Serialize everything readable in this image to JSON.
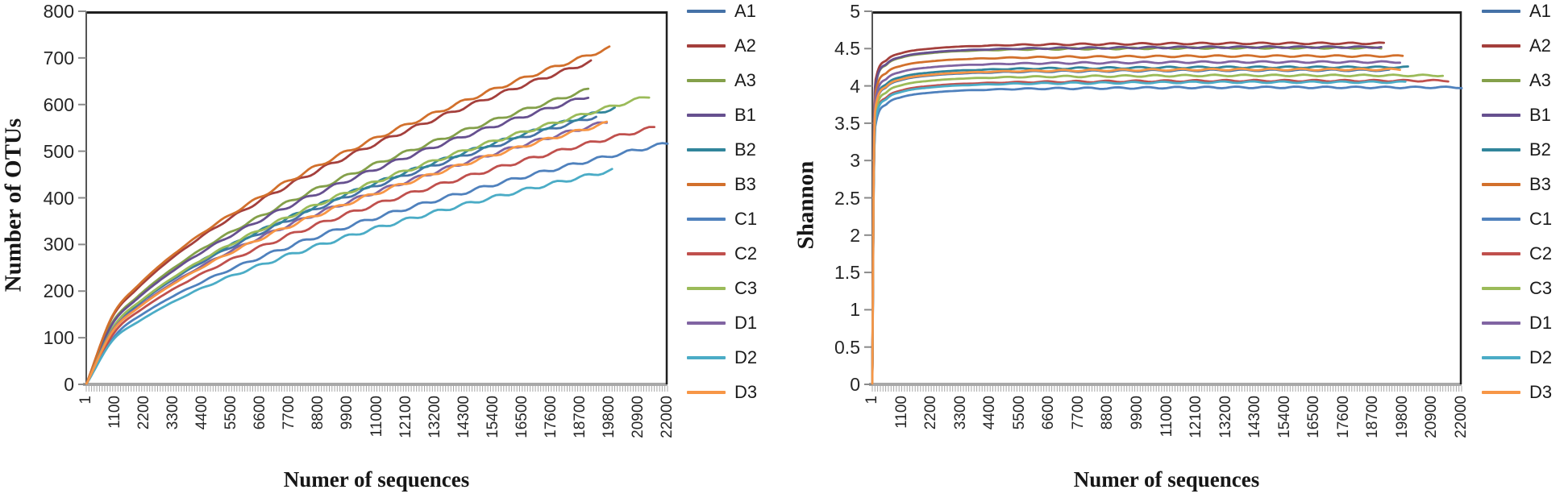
{
  "figure_title": "",
  "chart_data": [
    {
      "id": "otus",
      "type": "line",
      "title": "",
      "xlabel": "Numer of sequences",
      "ylabel": "Number of OTUs",
      "xlim": [
        1,
        22000
      ],
      "ylim": [
        0,
        800
      ],
      "grid": false,
      "legend_position": "right",
      "xticks": [
        1,
        1100,
        2200,
        3300,
        4400,
        5500,
        6600,
        7700,
        8800,
        9900,
        11000,
        12100,
        13200,
        14300,
        15400,
        16500,
        17600,
        18700,
        19800,
        20900,
        22000
      ],
      "yticks": [
        0,
        100,
        200,
        300,
        400,
        500,
        600,
        700,
        800
      ],
      "series": [
        {
          "name": "A1",
          "color": "#4572a7",
          "x": [
            1,
            965,
            1930,
            3860,
            6755,
            9650,
            13510,
            16405,
            19300
          ],
          "y": [
            0,
            117,
            170,
            245,
            329,
            398,
            476,
            528,
            575
          ]
        },
        {
          "name": "A2",
          "color": "#a43f3c",
          "x": [
            1,
            955,
            1910,
            3820,
            6685,
            9550,
            13370,
            16235,
            19100
          ],
          "y": [
            0,
            141,
            204,
            295,
            397,
            480,
            573,
            635,
            692
          ]
        },
        {
          "name": "A3",
          "color": "#84a04a",
          "x": [
            1,
            950,
            1900,
            3800,
            6650,
            9500,
            13300,
            16150,
            19000
          ],
          "y": [
            0,
            129,
            186,
            269,
            362,
            438,
            523,
            580,
            632
          ]
        },
        {
          "name": "B1",
          "color": "#66508f",
          "x": [
            1,
            950,
            1900,
            3800,
            6650,
            9500,
            13300,
            16150,
            19000
          ],
          "y": [
            0,
            126,
            182,
            263,
            354,
            428,
            512,
            567,
            618
          ]
        },
        {
          "name": "B2",
          "color": "#31859b",
          "x": [
            1,
            1000,
            2000,
            4000,
            7000,
            10000,
            14000,
            17000,
            20000
          ],
          "y": [
            0,
            121,
            175,
            253,
            340,
            411,
            491,
            544,
            593
          ]
        },
        {
          "name": "B3",
          "color": "#d2702c",
          "x": [
            1,
            990,
            1980,
            3960,
            6930,
            9900,
            13860,
            16830,
            19800
          ],
          "y": [
            0,
            147,
            213,
            307,
            413,
            500,
            597,
            662,
            721
          ]
        },
        {
          "name": "C1",
          "color": "#4f81bd",
          "x": [
            1,
            1100,
            2200,
            4400,
            7700,
            11000,
            15400,
            18700,
            22000
          ],
          "y": [
            0,
            105,
            153,
            220,
            296,
            358,
            428,
            475,
            517
          ]
        },
        {
          "name": "C2",
          "color": "#c0504d",
          "x": [
            1,
            1075,
            2150,
            4300,
            7525,
            10750,
            15050,
            18275,
            21500
          ],
          "y": [
            0,
            112,
            163,
            235,
            316,
            382,
            456,
            506,
            551
          ]
        },
        {
          "name": "C3",
          "color": "#9bbb59",
          "x": [
            1,
            1065,
            2130,
            4260,
            7455,
            10650,
            14910,
            18105,
            21300
          ],
          "y": [
            0,
            126,
            182,
            263,
            354,
            428,
            512,
            567,
            618
          ]
        },
        {
          "name": "D1",
          "color": "#8064a2",
          "x": [
            1,
            985,
            1970,
            3940,
            6895,
            9850,
            13790,
            16745,
            19700
          ],
          "y": [
            0,
            115,
            166,
            240,
            323,
            390,
            466,
            517,
            563
          ]
        },
        {
          "name": "D2",
          "color": "#4bacc6",
          "x": [
            1,
            995,
            1990,
            3980,
            6965,
            9950,
            13930,
            16915,
            19900
          ],
          "y": [
            0,
            94,
            135,
            196,
            263,
            318,
            380,
            421,
            459
          ]
        },
        {
          "name": "D3",
          "color": "#f79646",
          "x": [
            1,
            985,
            1970,
            3940,
            6895,
            9850,
            13790,
            16745,
            19700
          ],
          "y": [
            0,
            113,
            164,
            237,
            320,
            387,
            463,
            514,
            560
          ]
        }
      ]
    },
    {
      "id": "shannon",
      "type": "line",
      "title": "",
      "xlabel": "Numer of sequences",
      "ylabel": "Shannon",
      "xlim": [
        1,
        22000
      ],
      "ylim": [
        0,
        5
      ],
      "grid": false,
      "legend_position": "right",
      "xticks": [
        1,
        1100,
        2200,
        3300,
        4400,
        5500,
        6600,
        7700,
        8800,
        9900,
        11000,
        12100,
        13200,
        14300,
        15400,
        16500,
        17600,
        18700,
        19800,
        20900,
        22000
      ],
      "yticks": [
        0,
        0.5,
        1,
        1.5,
        2,
        2.5,
        3,
        3.5,
        4,
        4.5,
        5
      ],
      "series": [
        {
          "name": "A1",
          "color": "#4572a7",
          "x": [
            1,
            60,
            150,
            550,
            1100,
            2200,
            4400,
            8800,
            14300,
            19300
          ],
          "y": [
            0,
            3.06,
            3.76,
            3.99,
            4.08,
            4.14,
            4.18,
            4.2,
            4.21,
            4.21
          ]
        },
        {
          "name": "A2",
          "color": "#a43f3c",
          "x": [
            1,
            60,
            150,
            550,
            1100,
            2200,
            4400,
            8800,
            14300,
            19100
          ],
          "y": [
            0,
            3.42,
            4.12,
            4.35,
            4.44,
            4.5,
            4.54,
            4.56,
            4.57,
            4.57
          ]
        },
        {
          "name": "A3",
          "color": "#84a04a",
          "x": [
            1,
            60,
            150,
            550,
            1100,
            2200,
            4400,
            8800,
            14300,
            19000
          ],
          "y": [
            0,
            3.36,
            4.06,
            4.29,
            4.38,
            4.44,
            4.48,
            4.5,
            4.51,
            4.51
          ]
        },
        {
          "name": "B1",
          "color": "#66508f",
          "x": [
            1,
            60,
            150,
            550,
            1100,
            2200,
            4400,
            8800,
            14300,
            19000
          ],
          "y": [
            0,
            3.37,
            4.07,
            4.3,
            4.39,
            4.45,
            4.49,
            4.51,
            4.52,
            4.52
          ]
        },
        {
          "name": "B2",
          "color": "#31859b",
          "x": [
            1,
            60,
            150,
            550,
            1100,
            2200,
            4400,
            8800,
            14300,
            20000
          ],
          "y": [
            0,
            3.1,
            3.8,
            4.03,
            4.12,
            4.18,
            4.22,
            4.24,
            4.25,
            4.25
          ]
        },
        {
          "name": "B3",
          "color": "#d2702c",
          "x": [
            1,
            60,
            150,
            550,
            1100,
            2200,
            4400,
            8800,
            14300,
            19800
          ],
          "y": [
            0,
            3.25,
            3.95,
            4.18,
            4.27,
            4.33,
            4.37,
            4.39,
            4.4,
            4.4
          ]
        },
        {
          "name": "C1",
          "color": "#4f81bd",
          "x": [
            1,
            60,
            150,
            550,
            1100,
            2200,
            4400,
            8800,
            14300,
            22000
          ],
          "y": [
            0,
            2.83,
            3.53,
            3.76,
            3.85,
            3.91,
            3.95,
            3.97,
            3.98,
            3.98
          ]
        },
        {
          "name": "C2",
          "color": "#c0504d",
          "x": [
            1,
            60,
            150,
            550,
            1100,
            2200,
            4400,
            8800,
            14300,
            21500
          ],
          "y": [
            0,
            2.92,
            3.62,
            3.85,
            3.94,
            4.0,
            4.04,
            4.06,
            4.07,
            4.07
          ]
        },
        {
          "name": "C3",
          "color": "#9bbb59",
          "x": [
            1,
            60,
            150,
            550,
            1100,
            2200,
            4400,
            8800,
            14300,
            21300
          ],
          "y": [
            0,
            2.99,
            3.69,
            3.92,
            4.01,
            4.07,
            4.11,
            4.13,
            4.14,
            4.14
          ]
        },
        {
          "name": "D1",
          "color": "#8064a2",
          "x": [
            1,
            60,
            150,
            550,
            1100,
            2200,
            4400,
            8800,
            14300,
            19700
          ],
          "y": [
            0,
            3.17,
            3.87,
            4.1,
            4.19,
            4.25,
            4.29,
            4.31,
            4.32,
            4.32
          ]
        },
        {
          "name": "D2",
          "color": "#4bacc6",
          "x": [
            1,
            60,
            150,
            550,
            1100,
            2200,
            4400,
            8800,
            14300,
            19900
          ],
          "y": [
            0,
            2.9,
            3.6,
            3.83,
            3.92,
            3.98,
            4.02,
            4.04,
            4.05,
            4.05
          ]
        },
        {
          "name": "D3",
          "color": "#f79646",
          "x": [
            1,
            60,
            150,
            550,
            1100,
            2200,
            4400,
            8800,
            14300,
            19700
          ],
          "y": [
            0,
            3.07,
            3.77,
            4.0,
            4.09,
            4.15,
            4.19,
            4.21,
            4.22,
            4.22
          ]
        }
      ]
    }
  ],
  "legend_labels": [
    "A1",
    "A2",
    "A3",
    "B1",
    "B2",
    "B3",
    "C1",
    "C2",
    "C3",
    "D1",
    "D2",
    "D3"
  ],
  "colors": {
    "axis_dark": "#1f1f1f",
    "axis_gray": "#a8a8a8",
    "tick_gray": "#8a8a8a"
  }
}
